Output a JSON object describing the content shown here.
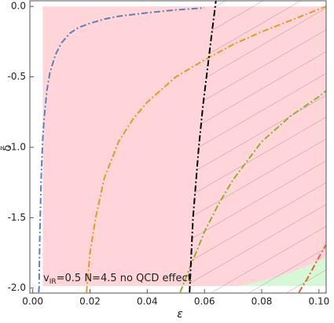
{
  "chart_data": {
    "type": "line",
    "xlabel": "ε",
    "ylabel": "δ̃",
    "annotation": {
      "symbol": "v",
      "subscript": "IR",
      "text": "=0.5  N=4.5  no QCD effect"
    },
    "xlim": [
      -0.001,
      0.1025
    ],
    "ylim": [
      -2.035,
      0.04
    ],
    "xticks": [
      {
        "value": 0,
        "label": "0.00"
      },
      {
        "value": 0.02,
        "label": "0.02"
      },
      {
        "value": 0.04,
        "label": "0.04"
      },
      {
        "value": 0.06,
        "label": "0.06"
      },
      {
        "value": 0.08,
        "label": "0.08"
      },
      {
        "value": 0.1,
        "label": "0.10"
      }
    ],
    "yticks": [
      {
        "value": 0,
        "label": "0.0"
      },
      -0.5,
      {
        "value": -1,
        "label": "-1.0"
      },
      -1.5,
      {
        "value": -2,
        "label": "-2.0"
      }
    ],
    "regions": [
      {
        "color": "#ffd5d9",
        "x": [
          0.0035,
          0.1025,
          0.1025,
          0.0035
        ],
        "y": [
          0,
          0,
          -1.985,
          -1.985
        ]
      },
      {
        "color": "#d6f8d6",
        "x": [
          0.072,
          0.08,
          0.09,
          0.1,
          0.1025,
          0.1025
        ],
        "y": [
          -1.985,
          -1.95,
          -1.89,
          -1.81,
          -1.78,
          -1.985
        ]
      }
    ],
    "hatch_series": 4,
    "series": [
      {
        "color": "#5e81b5",
        "x": [
          0.0021,
          0.0022,
          0.0025,
          0.003,
          0.0035,
          0.004,
          0.005,
          0.006,
          0.008,
          0.01,
          0.013,
          0.016,
          0.02,
          0.025,
          0.03,
          0.04,
          0.05,
          0.06
        ],
        "values": [
          -2.03,
          -2.0,
          -1.6,
          -1.19,
          -0.94,
          -0.79,
          -0.59,
          -0.47,
          -0.34,
          -0.26,
          -0.19,
          -0.15,
          -0.12,
          -0.09,
          -0.07,
          -0.045,
          -0.025,
          -0.01
        ]
      },
      {
        "color": "#e19c24",
        "x": [
          0.0188,
          0.02,
          0.022,
          0.025,
          0.03,
          0.035,
          0.04,
          0.05,
          0.06,
          0.07,
          0.08,
          0.09,
          0.1,
          0.1025
        ],
        "values": [
          -2.03,
          -1.75,
          -1.5,
          -1.22,
          -0.96,
          -0.8,
          -0.68,
          -0.5,
          -0.38,
          -0.27,
          -0.18,
          -0.1,
          -0.02,
          0.0
        ]
      },
      {
        "color": "#8fb032",
        "x": [
          0.0515,
          0.055,
          0.06,
          0.065,
          0.07,
          0.08,
          0.09,
          0.1,
          0.1025
        ],
        "values": [
          -2.03,
          -1.85,
          -1.6,
          -1.4,
          -1.23,
          -0.96,
          -0.78,
          -0.64,
          -0.6
        ]
      },
      {
        "color": "#eb6235",
        "x": [
          0.093,
          0.096,
          0.1,
          0.1025
        ],
        "values": [
          -2.03,
          -1.93,
          -1.78,
          -1.69
        ]
      },
      {
        "color": "#000000",
        "x": [
          0.0548,
          0.0553,
          0.056,
          0.057,
          0.058,
          0.0595,
          0.061,
          0.0625,
          0.064
        ],
        "values": [
          -2.03,
          -1.8,
          -1.5,
          -1.25,
          -1.0,
          -0.7,
          -0.45,
          -0.2,
          0.04
        ]
      }
    ]
  }
}
